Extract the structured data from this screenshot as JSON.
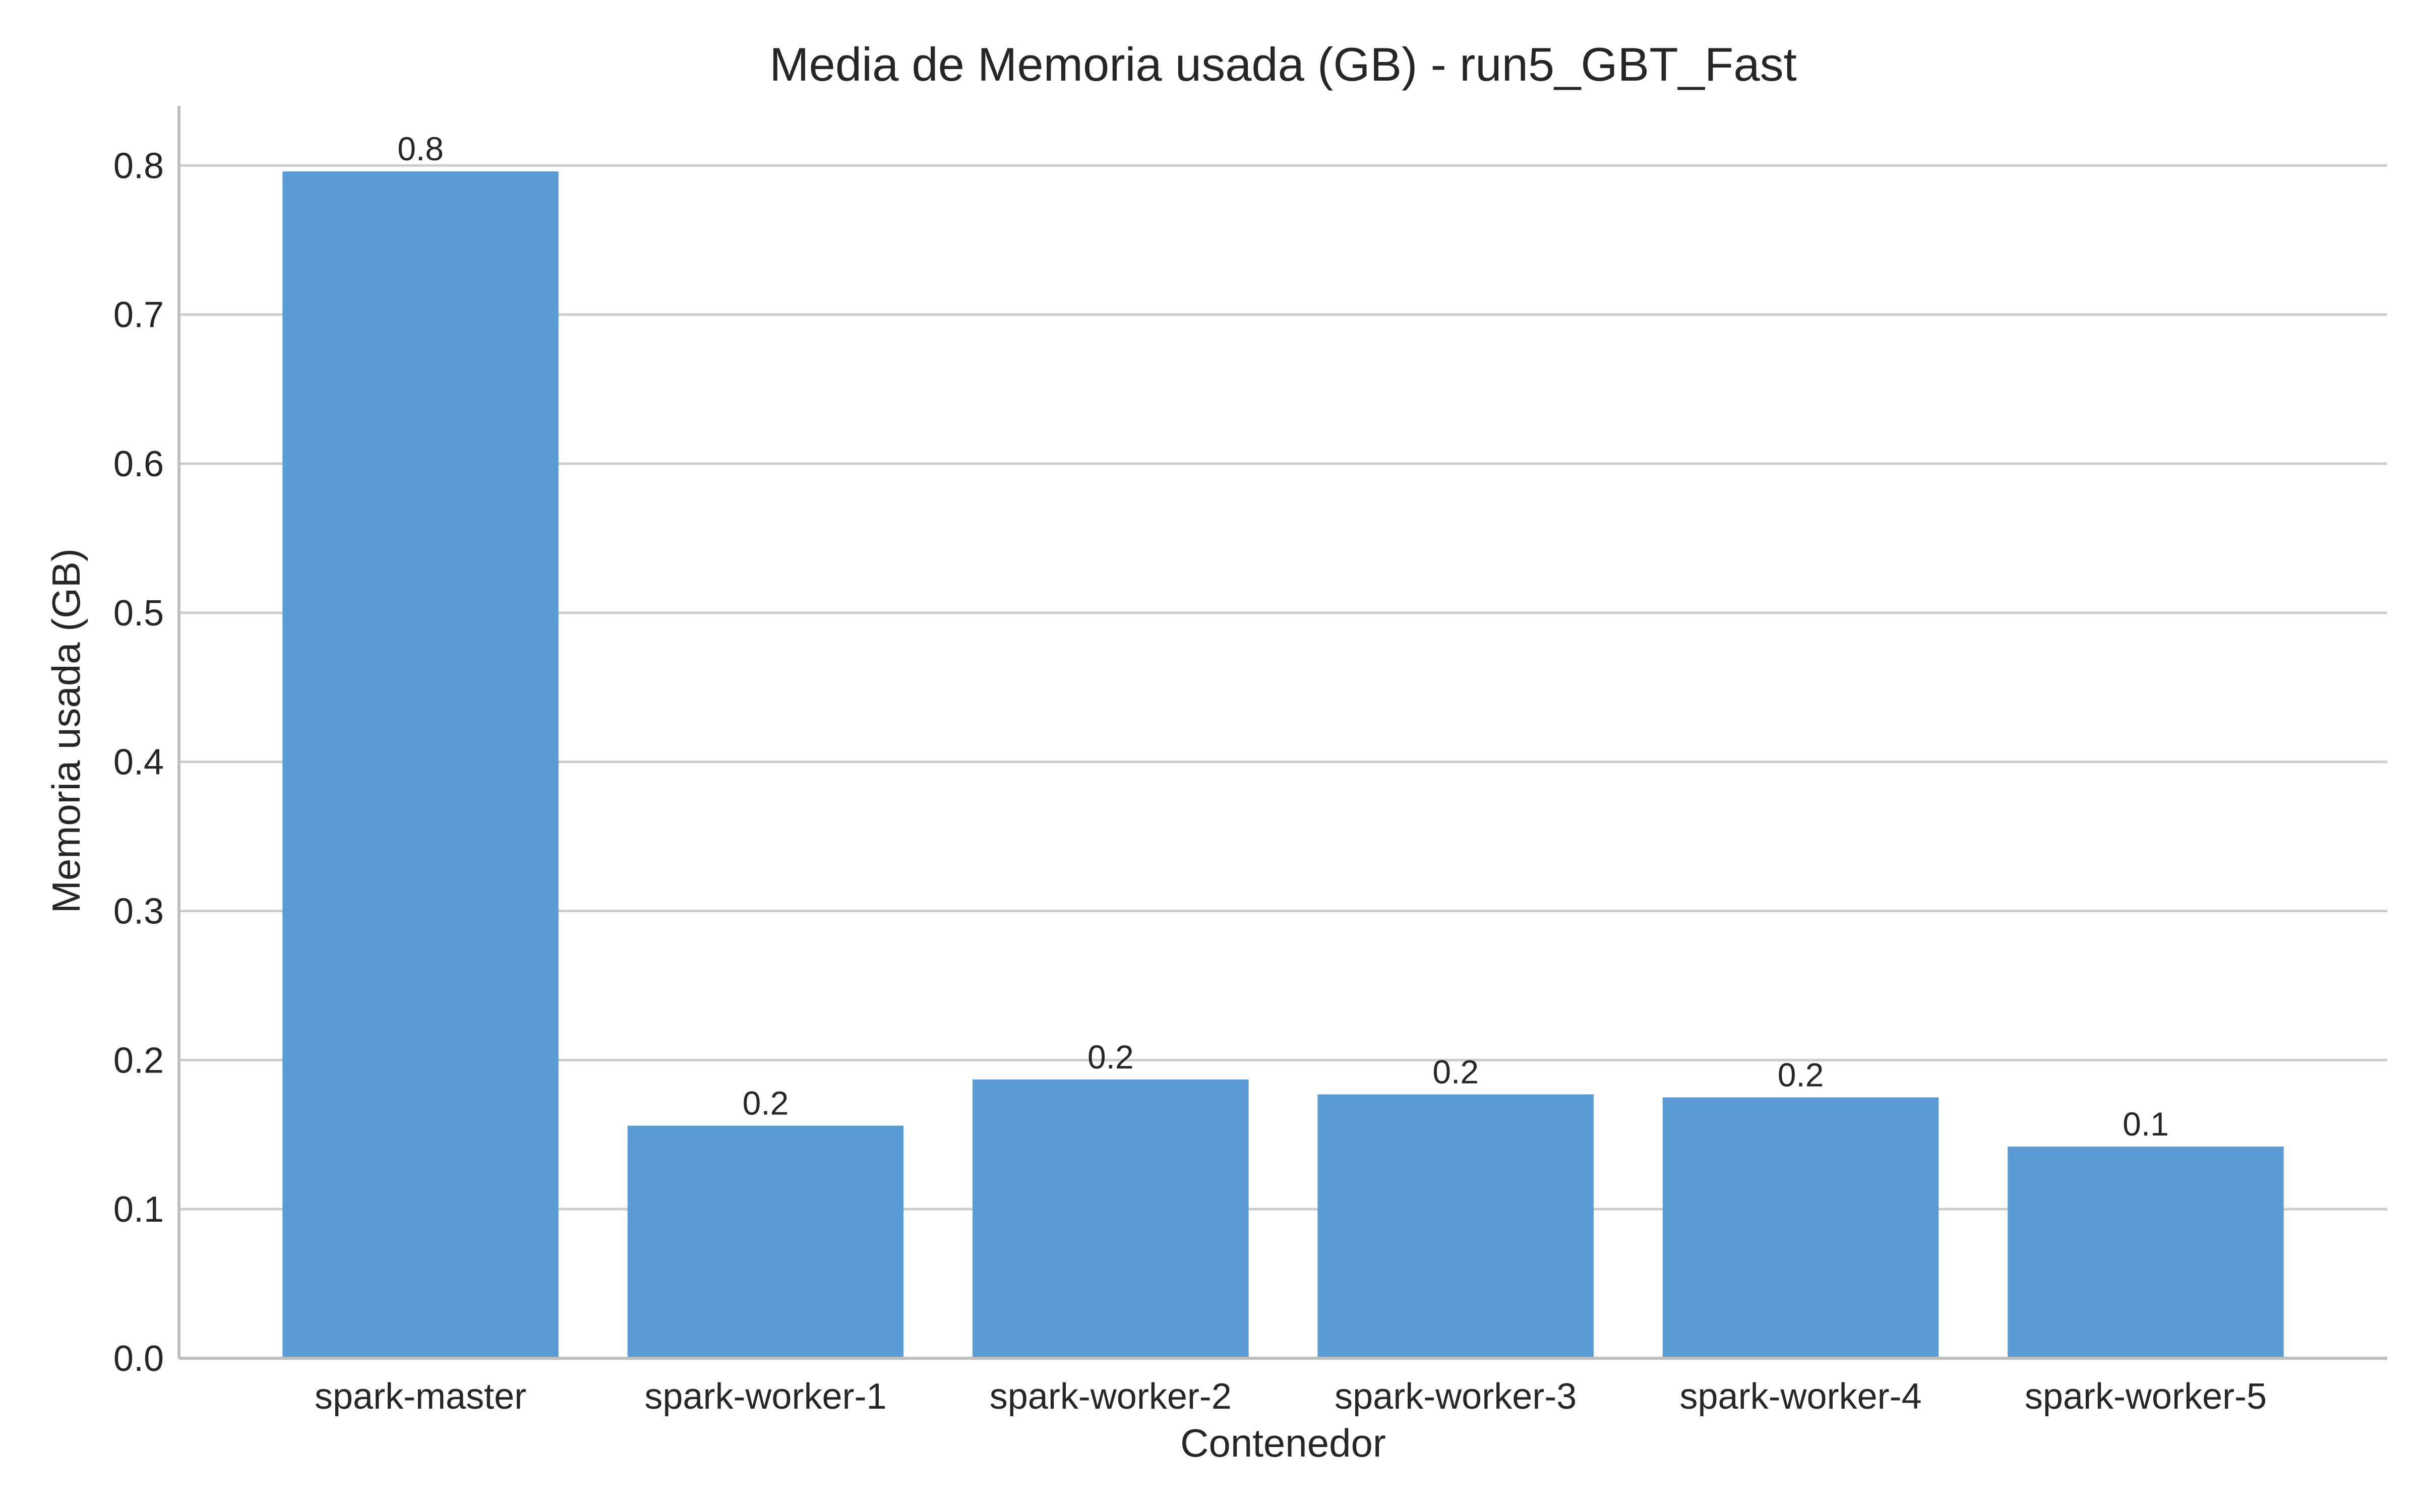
{
  "chart_data": {
    "type": "bar",
    "title": "Media de Memoria usada (GB) - run5_GBT_Fast",
    "xlabel": "Contenedor",
    "ylabel": "Memoria usada (GB)",
    "categories": [
      "spark-master",
      "spark-worker-1",
      "spark-worker-2",
      "spark-worker-3",
      "spark-worker-4",
      "spark-worker-5"
    ],
    "values": [
      0.796,
      0.156,
      0.187,
      0.177,
      0.175,
      0.142
    ],
    "data_labels": [
      "0.8",
      "0.2",
      "0.2",
      "0.2",
      "0.2",
      "0.1"
    ],
    "y_ticks": [
      0.0,
      0.1,
      0.2,
      0.3,
      0.4,
      0.5,
      0.6,
      0.7,
      0.8
    ],
    "y_tick_labels": [
      "0.0",
      "0.1",
      "0.2",
      "0.3",
      "0.4",
      "0.5",
      "0.6",
      "0.7",
      "0.8"
    ],
    "ylim": [
      0,
      0.84
    ],
    "grid": "horizontal",
    "bar_color": "#5b9bd5",
    "grid_color": "#cccccc",
    "axis_color": "#bfbfbf"
  }
}
